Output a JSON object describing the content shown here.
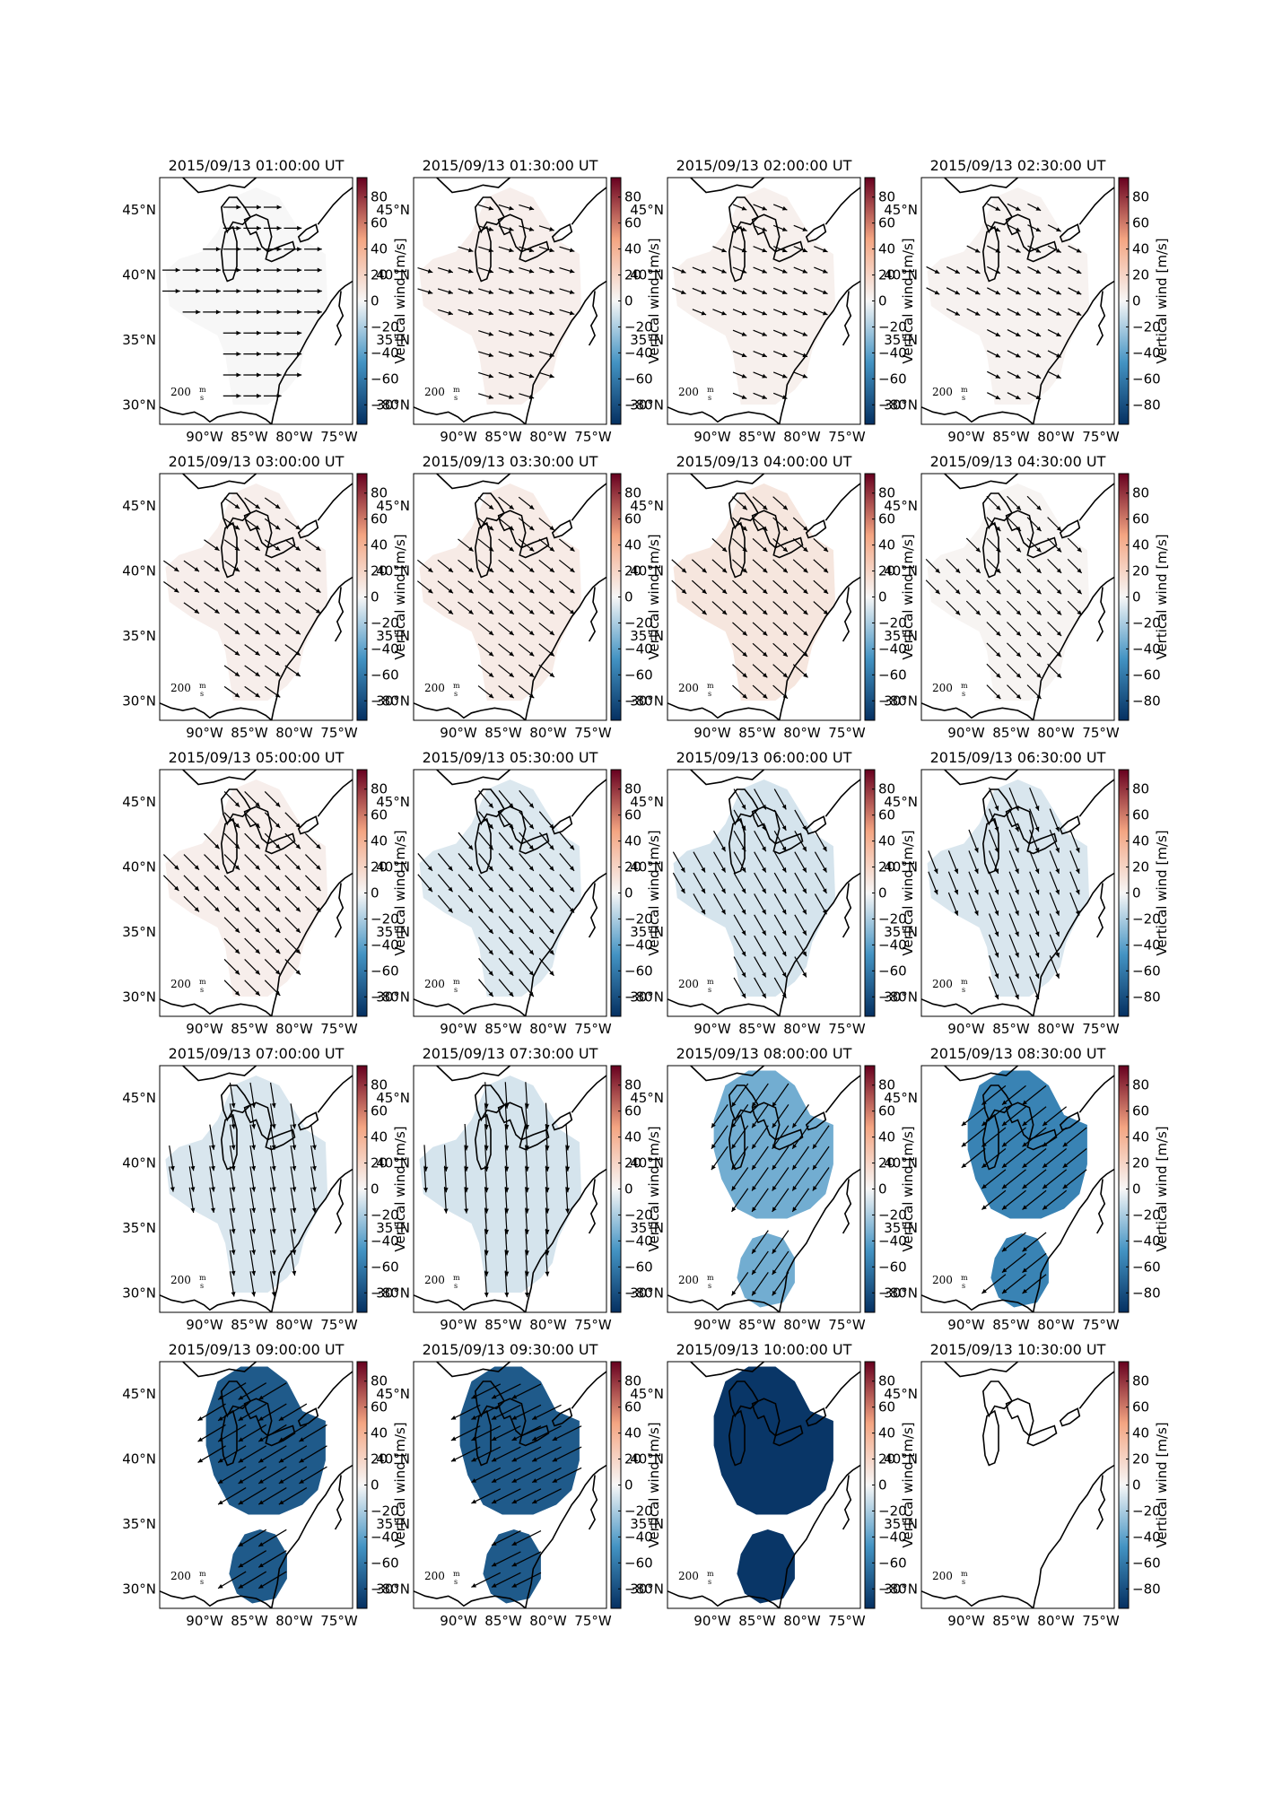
{
  "figure": {
    "colorbar_label": "Vertical wind [m/s]",
    "colorbar_ticks": [
      "80",
      "60",
      "40",
      "20",
      "0",
      "−20",
      "−40",
      "−60",
      "−80"
    ],
    "colorbar_tick_values": [
      80,
      60,
      40,
      20,
      0,
      -20,
      -40,
      -60,
      -80
    ],
    "colorbar_range": [
      -95,
      95
    ],
    "lat_ticks": [
      "45°N",
      "40°N",
      "35°N",
      "30°N"
    ],
    "lat_tick_values": [
      45,
      40,
      35,
      30
    ],
    "lon_ticks": [
      "90°W",
      "85°W",
      "80°W",
      "75°W"
    ],
    "lon_tick_values": [
      -90,
      -85,
      -80,
      -75
    ],
    "quiver_key_value": "200",
    "quiver_key_unit_num": "m",
    "quiver_key_unit_den": "s",
    "colormap": "RdBu_r",
    "colors": {
      "neg_max": "#053061",
      "neg_mid": "#4393c3",
      "zero": "#f7f7f7",
      "pos_mid": "#f4a582",
      "pos_max": "#67001f"
    }
  },
  "chart_data": [
    {
      "type": "heatmap",
      "title": "2015/09/13 01:00:00 UT",
      "vertical_wind": 0,
      "arrow_dir": [
        1,
        0
      ],
      "arrow_len": 0.35,
      "region": "full"
    },
    {
      "type": "heatmap",
      "title": "2015/09/13 01:30:00 UT",
      "vertical_wind": 5,
      "arrow_dir": [
        1,
        0.3
      ],
      "arrow_len": 0.25,
      "region": "full"
    },
    {
      "type": "heatmap",
      "title": "2015/09/13 02:00:00 UT",
      "vertical_wind": 4,
      "arrow_dir": [
        1,
        0.4
      ],
      "arrow_len": 0.2,
      "region": "full"
    },
    {
      "type": "heatmap",
      "title": "2015/09/13 02:30:00 UT",
      "vertical_wind": 3,
      "arrow_dir": [
        1,
        0.5
      ],
      "arrow_len": 0.2,
      "region": "full"
    },
    {
      "type": "heatmap",
      "title": "2015/09/13 03:00:00 UT",
      "vertical_wind": 5,
      "arrow_dir": [
        1,
        0.7
      ],
      "arrow_len": 0.4,
      "region": "full"
    },
    {
      "type": "heatmap",
      "title": "2015/09/13 03:30:00 UT",
      "vertical_wind": 7,
      "arrow_dir": [
        1,
        0.8
      ],
      "arrow_len": 0.45,
      "region": "full"
    },
    {
      "type": "heatmap",
      "title": "2015/09/13 04:00:00 UT",
      "vertical_wind": 10,
      "arrow_dir": [
        1,
        0.9
      ],
      "arrow_len": 0.45,
      "region": "full"
    },
    {
      "type": "heatmap",
      "title": "2015/09/13 04:30:00 UT",
      "vertical_wind": 2,
      "arrow_dir": [
        1,
        1
      ],
      "arrow_len": 0.45,
      "region": "full"
    },
    {
      "type": "heatmap",
      "title": "2015/09/13 05:00:00 UT",
      "vertical_wind": 5,
      "arrow_dir": [
        1,
        1
      ],
      "arrow_len": 0.55,
      "region": "full"
    },
    {
      "type": "heatmap",
      "title": "2015/09/13 05:30:00 UT",
      "vertical_wind": -7,
      "arrow_dir": [
        1,
        1.2
      ],
      "arrow_len": 0.6,
      "region": "full"
    },
    {
      "type": "heatmap",
      "title": "2015/09/13 06:00:00 UT",
      "vertical_wind": -9,
      "arrow_dir": [
        0.8,
        1.4
      ],
      "arrow_len": 0.65,
      "region": "full"
    },
    {
      "type": "heatmap",
      "title": "2015/09/13 06:30:00 UT",
      "vertical_wind": -8,
      "arrow_dir": [
        0.6,
        1.5
      ],
      "arrow_len": 0.7,
      "region": "full"
    },
    {
      "type": "heatmap",
      "title": "2015/09/13 07:00:00 UT",
      "vertical_wind": -8,
      "arrow_dir": [
        0.25,
        1.6
      ],
      "arrow_len": 0.75,
      "region": "full"
    },
    {
      "type": "heatmap",
      "title": "2015/09/13 07:30:00 UT",
      "vertical_wind": -9,
      "arrow_dir": [
        0.1,
        1.6
      ],
      "arrow_len": 0.8,
      "region": "full"
    },
    {
      "type": "heatmap",
      "title": "2015/09/13 08:00:00 UT",
      "vertical_wind": -35,
      "arrow_dir": [
        -0.7,
        1
      ],
      "arrow_len": 0.9,
      "region": "split"
    },
    {
      "type": "heatmap",
      "title": "2015/09/13 08:30:00 UT",
      "vertical_wind": -55,
      "arrow_dir": [
        -1,
        0.8
      ],
      "arrow_len": 1.0,
      "region": "split"
    },
    {
      "type": "heatmap",
      "title": "2015/09/13 09:00:00 UT",
      "vertical_wind": -75,
      "arrow_dir": [
        -1,
        0.6
      ],
      "arrow_len": 1.1,
      "region": "split"
    },
    {
      "type": "heatmap",
      "title": "2015/09/13 09:30:00 UT",
      "vertical_wind": -75,
      "arrow_dir": [
        -1,
        0.5
      ],
      "arrow_len": 1.1,
      "region": "split"
    },
    {
      "type": "heatmap",
      "title": "2015/09/13 10:00:00 UT",
      "vertical_wind": -92,
      "arrow_dir": [
        -1,
        0.5
      ],
      "arrow_len": 0.0,
      "region": "split"
    },
    {
      "type": "heatmap",
      "title": "2015/09/13 10:30:00 UT",
      "vertical_wind": null,
      "arrow_dir": [
        0,
        0
      ],
      "arrow_len": 0.0,
      "region": "none"
    }
  ]
}
